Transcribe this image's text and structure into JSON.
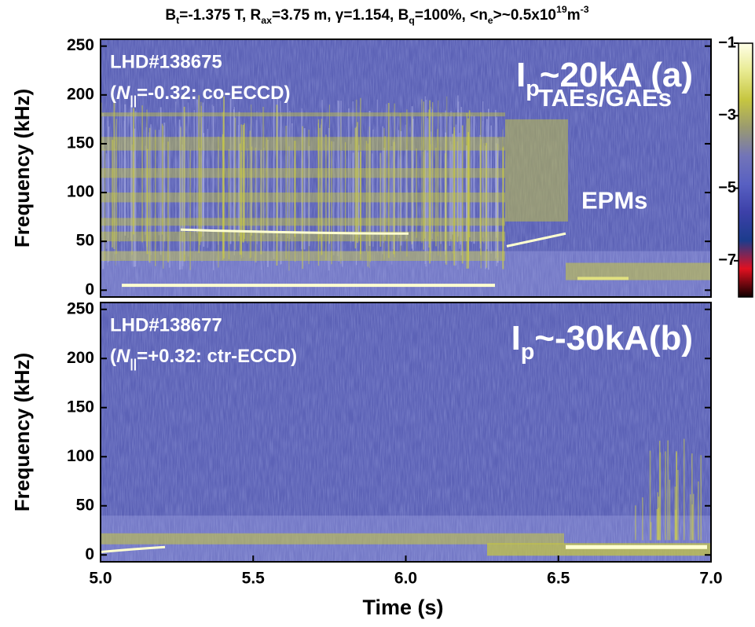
{
  "title": [
    {
      "text": "B"
    },
    {
      "text": "t",
      "style": "sub"
    },
    {
      "text": "=-1.375 T, R"
    },
    {
      "text": "ax",
      "style": "sub"
    },
    {
      "text": "=3.75 m, γ=1.154, B"
    },
    {
      "text": "q",
      "style": "sub"
    },
    {
      "text": "=100%, <n"
    },
    {
      "text": "e",
      "style": "sub"
    },
    {
      "text": ">~0.5x10"
    },
    {
      "text": "19",
      "style": "sup"
    },
    {
      "text": "m"
    },
    {
      "text": "-3",
      "style": "sup"
    }
  ],
  "xlabel": "Time (s)",
  "chart_data": [
    {
      "type": "spectrogram",
      "ylabel": "Frequency (kHz)",
      "xlim": [
        5.0,
        7.0
      ],
      "ylim": [
        -7,
        257
      ],
      "yticks": [
        0,
        50,
        100,
        150,
        200,
        250
      ],
      "shot": "LHD#138675",
      "condition": [
        {
          "text": "("
        },
        {
          "text": "N",
          "style": "italic"
        },
        {
          "text": "||",
          "style": "sub"
        },
        {
          "text": "=-0.32: co-ECCD)"
        }
      ],
      "current": [
        {
          "text": "I"
        },
        {
          "text": "p",
          "style": "sub"
        },
        {
          "text": "~20kA (a)"
        }
      ],
      "annotations": [
        "TAEs/GAEs",
        "EPMs"
      ],
      "colorbar": {
        "lim": [
          -8,
          -1
        ],
        "ticks": [
          {
            "value": -1,
            "label": "−1"
          },
          {
            "value": -3,
            "label": "−3"
          },
          {
            "value": -5,
            "label": "−5"
          },
          {
            "value": -7,
            "label": "−7"
          }
        ],
        "colors": [
          "#ffffe8",
          "#e8ea90",
          "#c6c640",
          "#9a9a70",
          "#7274b8",
          "#5860c2",
          "#3c40a8",
          "#1c3c8c",
          "#e01020",
          "#100000"
        ]
      }
    },
    {
      "type": "spectrogram",
      "ylabel": "Frequency (kHz)",
      "xlim": [
        5.0,
        7.0
      ],
      "ylim": [
        -7,
        257
      ],
      "yticks": [
        0,
        50,
        100,
        150,
        200,
        250
      ],
      "xticks": [
        {
          "value": 5.0,
          "label": "5.0"
        },
        {
          "value": 5.5,
          "label": "5.5"
        },
        {
          "value": 6.0,
          "label": "6.0"
        },
        {
          "value": 6.5,
          "label": "6.5"
        },
        {
          "value": 7.0,
          "label": "7.0"
        }
      ],
      "shot": "LHD#138677",
      "condition": [
        {
          "text": "("
        },
        {
          "text": "N",
          "style": "italic"
        },
        {
          "text": "||",
          "style": "sub"
        },
        {
          "text": "=+0.32: ctr-ECCD)"
        }
      ],
      "current": [
        {
          "text": "I"
        },
        {
          "text": "p",
          "style": "sub"
        },
        {
          "text": "~-30kA(b)"
        }
      ]
    }
  ]
}
